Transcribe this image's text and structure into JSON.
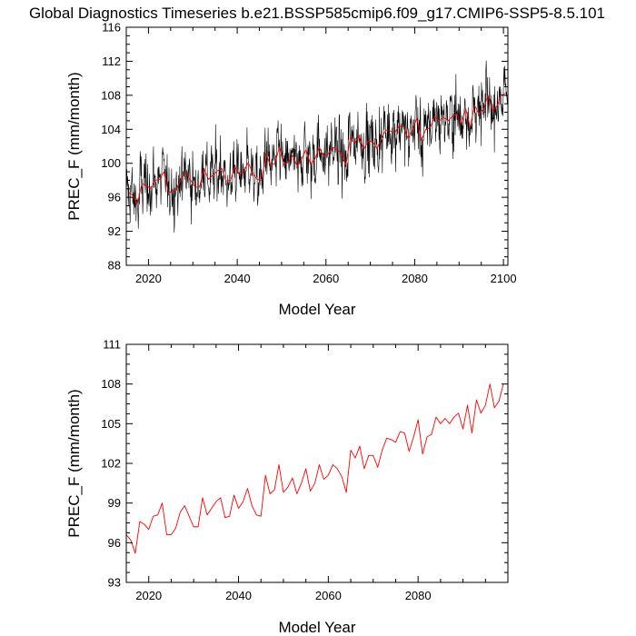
{
  "title": "Global Diagnostics Timeseries b.e21.BSSP585cmip6.f09_g17.CMIP6-SSP5-8.5.101",
  "colors": {
    "monthly": "#000000",
    "annual": "#ff0000",
    "axis": "#000000"
  },
  "chart_data": [
    {
      "type": "line",
      "id": "monthly",
      "xlabel": "Model Year",
      "ylabel": "PREC_F (mm/month)",
      "xlim": [
        2015,
        2101
      ],
      "ylim": [
        88,
        116
      ],
      "x_ticks": [
        2020,
        2040,
        2060,
        2080,
        2100
      ],
      "x_tick_labels": [
        "2020",
        "2040",
        "2060",
        "2080",
        "2100"
      ],
      "y_ticks": [
        88,
        92,
        96,
        100,
        104,
        108,
        112,
        116
      ],
      "y_tick_labels": [
        "88",
        "92",
        "96",
        "100",
        "104",
        "108",
        "112",
        "116"
      ],
      "grid": false,
      "series": [
        {
          "color": "#000000",
          "kind": "monthly",
          "years": [
            2015,
            2100
          ],
          "per_year": 12
        },
        {
          "color": "#ff0000",
          "kind": "annual-overlay",
          "x0": 2015.5,
          "dx": 1
        }
      ]
    },
    {
      "type": "line",
      "id": "annual",
      "xlabel": "Model Year",
      "ylabel": "PREC_F (mm/month)",
      "xlim": [
        2015,
        2100
      ],
      "ylim": [
        93,
        111
      ],
      "x_ticks": [
        2020,
        2040,
        2060,
        2080
      ],
      "x_tick_labels": [
        "2020",
        "2040",
        "2060",
        "2080"
      ],
      "y_ticks": [
        93,
        96,
        99,
        102,
        105,
        108,
        111
      ],
      "y_tick_labels": [
        "93",
        "96",
        "99",
        "102",
        "105",
        "108",
        "111"
      ],
      "grid": false,
      "series": [
        {
          "color": "#ff0000",
          "x0": 2015,
          "dx": 1,
          "values": [
            96.6,
            96.2,
            95.2,
            97.6,
            97.4,
            97.0,
            98.0,
            98.1,
            99.0,
            96.6,
            96.6,
            97.1,
            98.3,
            98.8,
            98.0,
            97.2,
            97.2,
            99.4,
            98.1,
            98.6,
            99.1,
            99.4,
            97.9,
            98.0,
            99.6,
            98.6,
            99.1,
            100.1,
            98.8,
            98.1,
            98.0,
            101.1,
            99.7,
            100.0,
            101.9,
            99.8,
            100.2,
            100.9,
            99.7,
            100.5,
            101.6,
            99.9,
            100.5,
            101.9,
            100.8,
            101.1,
            101.9,
            101.6,
            101.0,
            99.8,
            103.0,
            102.4,
            103.3,
            101.6,
            102.6,
            102.6,
            101.7,
            103.0,
            103.9,
            103.8,
            103.6,
            104.4,
            104.3,
            102.9,
            104.0,
            105.3,
            102.7,
            104.0,
            104.2,
            105.5,
            105.0,
            105.4,
            105.0,
            105.5,
            105.8,
            104.6,
            106.4,
            104.3,
            106.8,
            105.8,
            106.4,
            108.0,
            106.2,
            106.7,
            108.0
          ]
        }
      ]
    }
  ]
}
